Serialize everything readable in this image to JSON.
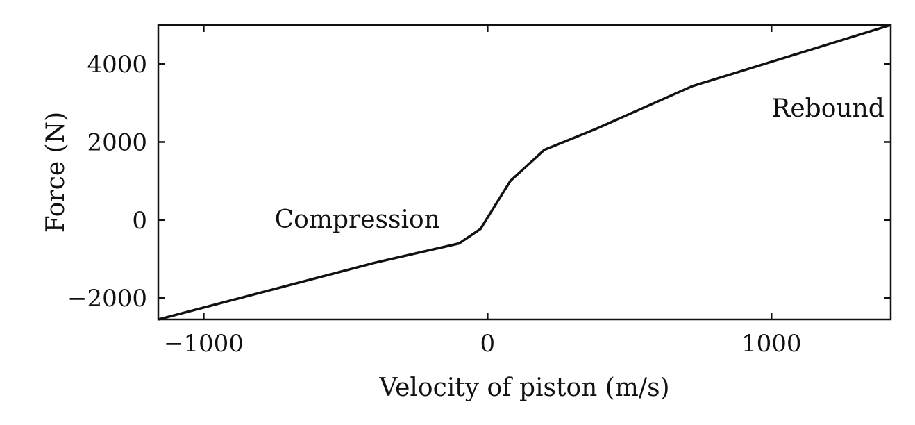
{
  "chart_data": {
    "type": "line",
    "title": "",
    "xlabel": "Velocity of piston (m/s)",
    "ylabel": "Force (N)",
    "xlim": [
      -1160,
      1420
    ],
    "ylim": [
      -2550,
      5000
    ],
    "xticks": [
      -1000,
      0,
      1000
    ],
    "yticks": [
      -2000,
      0,
      2000,
      4000
    ],
    "xtick_labels": [
      "−1000",
      "0",
      "1000"
    ],
    "ytick_labels": [
      "−2000",
      "0",
      "2000",
      "4000"
    ],
    "grid": false,
    "legend": "none",
    "line_color": "#111111",
    "series": [
      {
        "x": [
          -1160,
          -400,
          -100,
          -25,
          80,
          200,
          380,
          720,
          1420
        ],
        "y": [
          -2550,
          -1100,
          -600,
          -230,
          1000,
          1800,
          2330,
          3430,
          5000
        ]
      }
    ],
    "annotations": [
      {
        "text": "Compression",
        "x": -750,
        "y": -200
      },
      {
        "text": "Rebound",
        "x": 1000,
        "y": 2650
      }
    ]
  }
}
